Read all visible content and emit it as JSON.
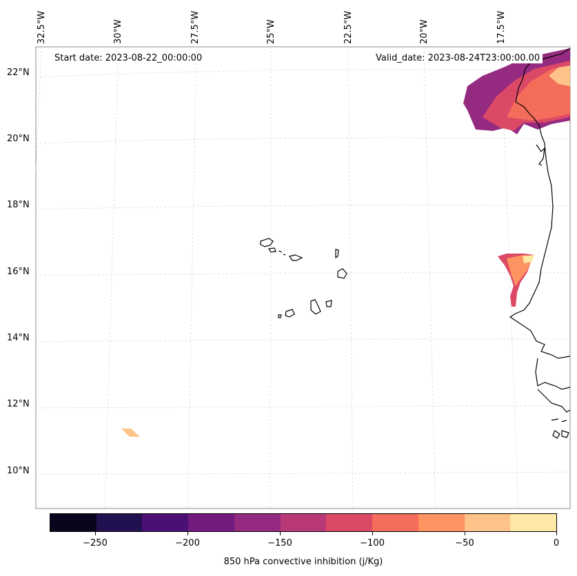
{
  "map": {
    "start_label": "Start date: 2023-08-22_00:00:00",
    "valid_label": "Valid_date: 2023-08-24T23:00:00.00",
    "lat_labels": [
      "22°N",
      "20°N",
      "18°N",
      "16°N",
      "14°N",
      "12°N",
      "10°N"
    ],
    "lon_labels": [
      "32.5°W",
      "30°W",
      "27.5°W",
      "25°W",
      "22.5°W",
      "20°W",
      "17.5°W"
    ],
    "field_name": "850 hPa convective inhibition"
  },
  "colorbar": {
    "label": "850 hPa convective inhibition (j/Kg)",
    "tick_labels": [
      "−250",
      "−200",
      "−150",
      "−100",
      "−50",
      "0"
    ],
    "colors": [
      "#07061d",
      "#221150",
      "#4c0f75",
      "#731a7e",
      "#952b80",
      "#b93976",
      "#db4966",
      "#f46c5a",
      "#fd9361",
      "#fec388",
      "#fde9a5"
    ]
  }
}
